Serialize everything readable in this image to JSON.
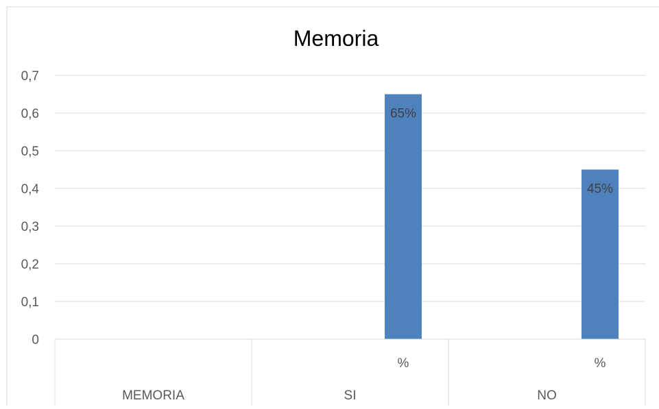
{
  "chart_data": {
    "type": "bar",
    "title": "Memoria",
    "ylim": [
      0,
      0.7
    ],
    "yticks": [
      0,
      0.1,
      0.2,
      0.3,
      0.4,
      0.5,
      0.6,
      0.7
    ],
    "ytick_labels": [
      "0",
      "0,1",
      "0,2",
      "0,3",
      "0,4",
      "0,5",
      "0,6",
      "0,7"
    ],
    "grid": true,
    "categories": [
      {
        "name": "MEMORIA",
        "series_label": ""
      },
      {
        "name": "SI",
        "series_label": "%"
      },
      {
        "name": "NO",
        "series_label": "%"
      }
    ],
    "values": [
      null,
      0.65,
      0.45
    ],
    "data_labels": [
      "",
      "65%",
      "45%"
    ],
    "colors": {
      "bar": "#4f81bd",
      "grid": "#d9d9d9",
      "axis_text": "#595959",
      "title": "#000000",
      "border": "#d9d9d9"
    }
  }
}
